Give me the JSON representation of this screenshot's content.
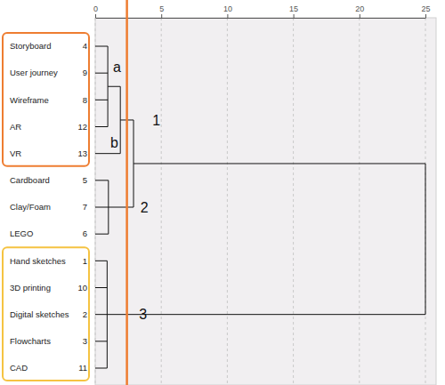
{
  "chart_data": {
    "type": "dendrogram",
    "orientation": "horizontal",
    "xlim": [
      0,
      25
    ],
    "xticks": [
      0,
      5,
      10,
      15,
      20,
      25
    ],
    "grid": true,
    "leaves": [
      {
        "name": "Storyboard",
        "number": 4
      },
      {
        "name": "User journey",
        "number": 9
      },
      {
        "name": "Wireframe",
        "number": 8
      },
      {
        "name": "AR",
        "number": 12
      },
      {
        "name": "VR",
        "number": 13,
        "annotation": "b"
      },
      {
        "name": "Cardboard",
        "number": 5
      },
      {
        "name": "Clay/Foam",
        "number": 7
      },
      {
        "name": "LEGO",
        "number": 6
      },
      {
        "name": "Hand sketches",
        "number": 1
      },
      {
        "name": "3D printing",
        "number": 10
      },
      {
        "name": "Digital sketches",
        "number": 2
      },
      {
        "name": "Flowcharts",
        "number": 3
      },
      {
        "name": "CAD",
        "number": 11
      }
    ],
    "tree": {
      "height": 25,
      "children": [
        {
          "height": 2.9,
          "children": [
            {
              "height": 1.9,
              "cluster_label": "1",
              "color": "#ee7d31",
              "children": [
                {
                  "height": 0.95,
                  "annotation": "a",
                  "children": [
                    0,
                    1,
                    2,
                    3
                  ]
                },
                4
              ]
            },
            {
              "height": 1.0,
              "cluster_label": "2",
              "children": [
                5,
                6,
                7
              ]
            }
          ]
        },
        {
          "height": 0.9,
          "cluster_label": "3",
          "color": "#f5c342",
          "children": [
            8,
            9,
            10,
            11,
            12
          ]
        }
      ]
    },
    "cut": {
      "value": 2.4,
      "color": "#ee7d31"
    }
  }
}
